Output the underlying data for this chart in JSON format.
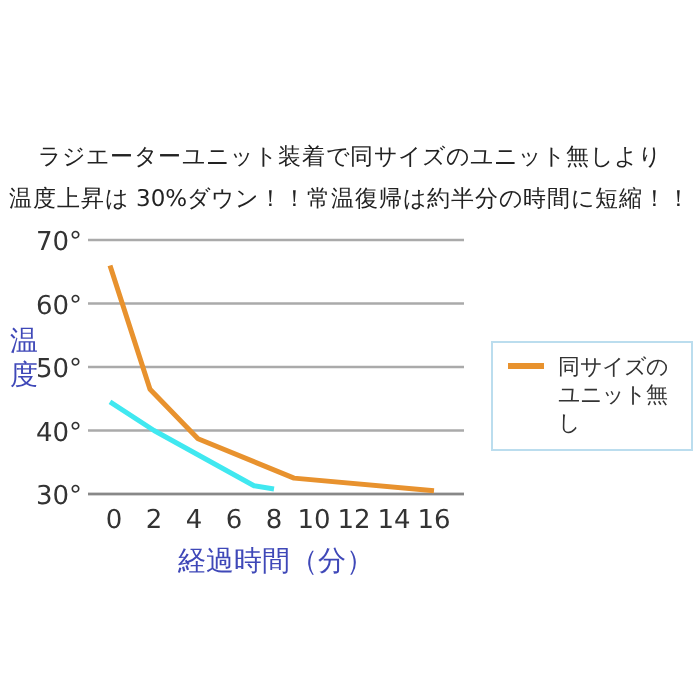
{
  "chart_data": {
    "type": "line",
    "title": "ラジエーターユニット装着で同サイズのユニット無しより",
    "subtitle": "温度上昇は 30%ダウン！！常温復帰は約半分の時間に短縮！！",
    "xlabel": "経過時間（分）",
    "ylabel": "温度",
    "xlim": [
      -1.3,
      17.5
    ],
    "xticks": [
      0,
      2,
      4,
      6,
      8,
      10,
      12,
      14,
      16
    ],
    "ylim": [
      30,
      70
    ],
    "yticks": [
      {
        "value": 30,
        "label": "30°"
      },
      {
        "value": 40,
        "label": "40°"
      },
      {
        "value": 50,
        "label": "50°"
      },
      {
        "value": 60,
        "label": "60°"
      },
      {
        "value": 70,
        "label": "70°"
      }
    ],
    "grid": "y",
    "legend": "right",
    "series": [
      {
        "name": "同サイズのユニット無し",
        "color": "#e8922e",
        "x": [
          -0.2,
          1.8,
          4.2,
          9,
          16
        ],
        "values": [
          66,
          46.5,
          38.7,
          32.5,
          30.5
        ]
      },
      {
        "color": "#40e8f0",
        "x": [
          -0.2,
          2,
          7,
          8
        ],
        "values": [
          44.5,
          40,
          31.3,
          30.8
        ]
      }
    ]
  }
}
